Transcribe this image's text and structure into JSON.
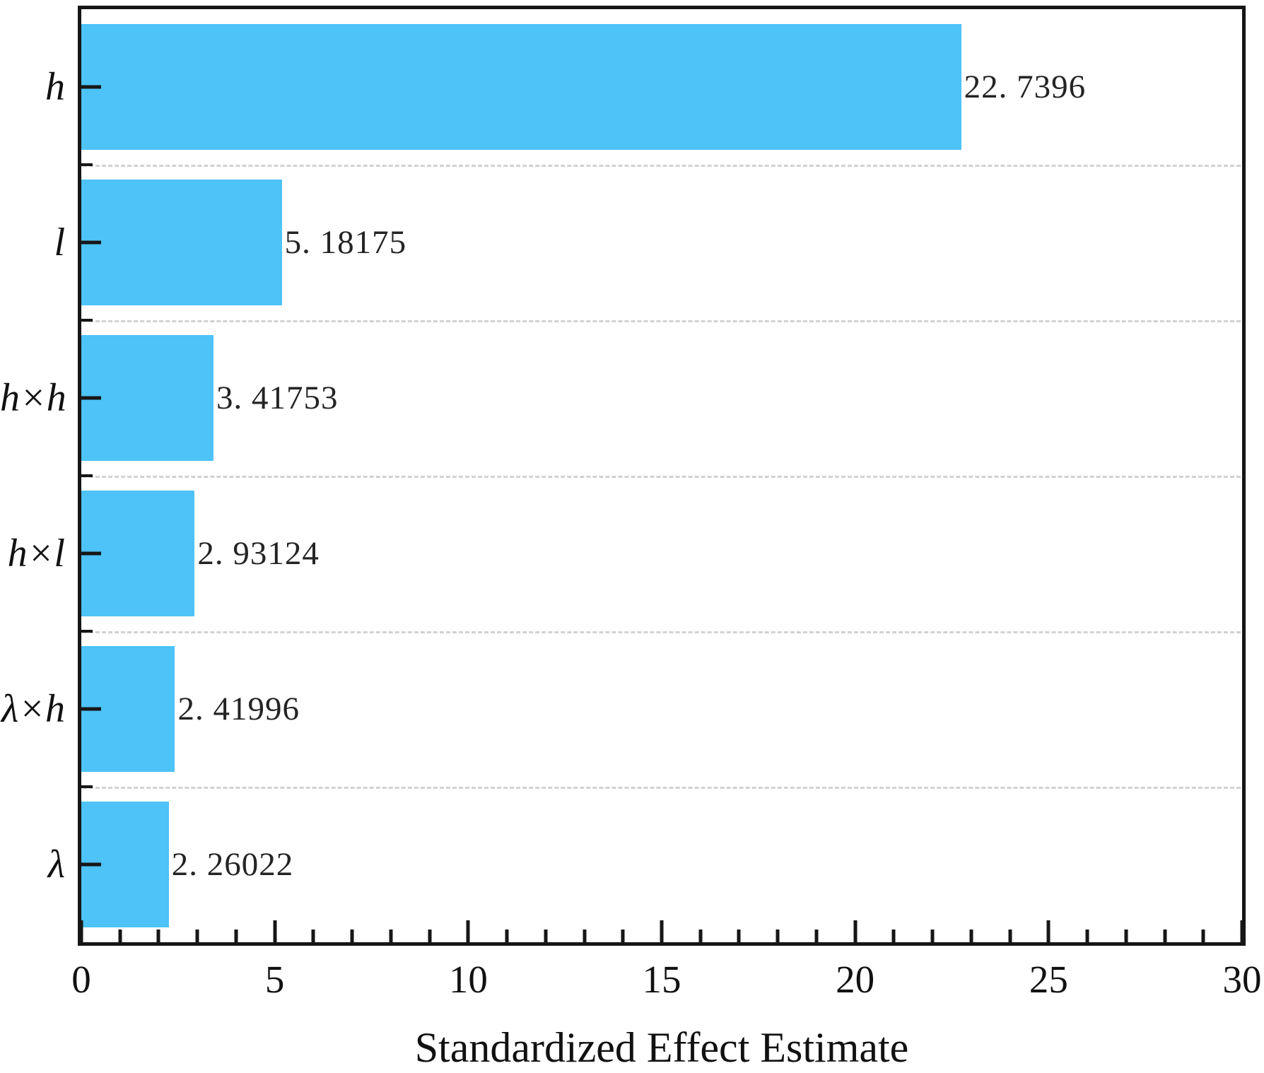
{
  "chart_data": {
    "type": "bar",
    "orientation": "horizontal",
    "title": "",
    "xlabel": "Standardized Effect Estimate",
    "ylabel": "",
    "categories": [
      "h",
      "l",
      "h×h",
      "h×l",
      "λ×h",
      "λ"
    ],
    "values": [
      22.7396,
      5.18175,
      3.41753,
      2.93124,
      2.41996,
      2.26022
    ],
    "value_labels": [
      "22. 7396",
      "5. 18175",
      "3. 41753",
      "2. 93124",
      "2. 41996",
      "2. 26022"
    ],
    "xlim": [
      0,
      30
    ],
    "x_major_ticks": [
      0,
      5,
      10,
      15,
      20,
      25,
      30
    ],
    "x_major_tick_labels": [
      "0",
      "5",
      "10",
      "15",
      "20",
      "25",
      "30"
    ],
    "x_minor_tick_step": 1,
    "grid": "dashed horizontal gridlines between category bands",
    "legend": "none",
    "bar_color": "#4DC3F7",
    "gridline_color": "#d2d2d2",
    "axis_color": "#161616",
    "text_color": "#111111"
  }
}
